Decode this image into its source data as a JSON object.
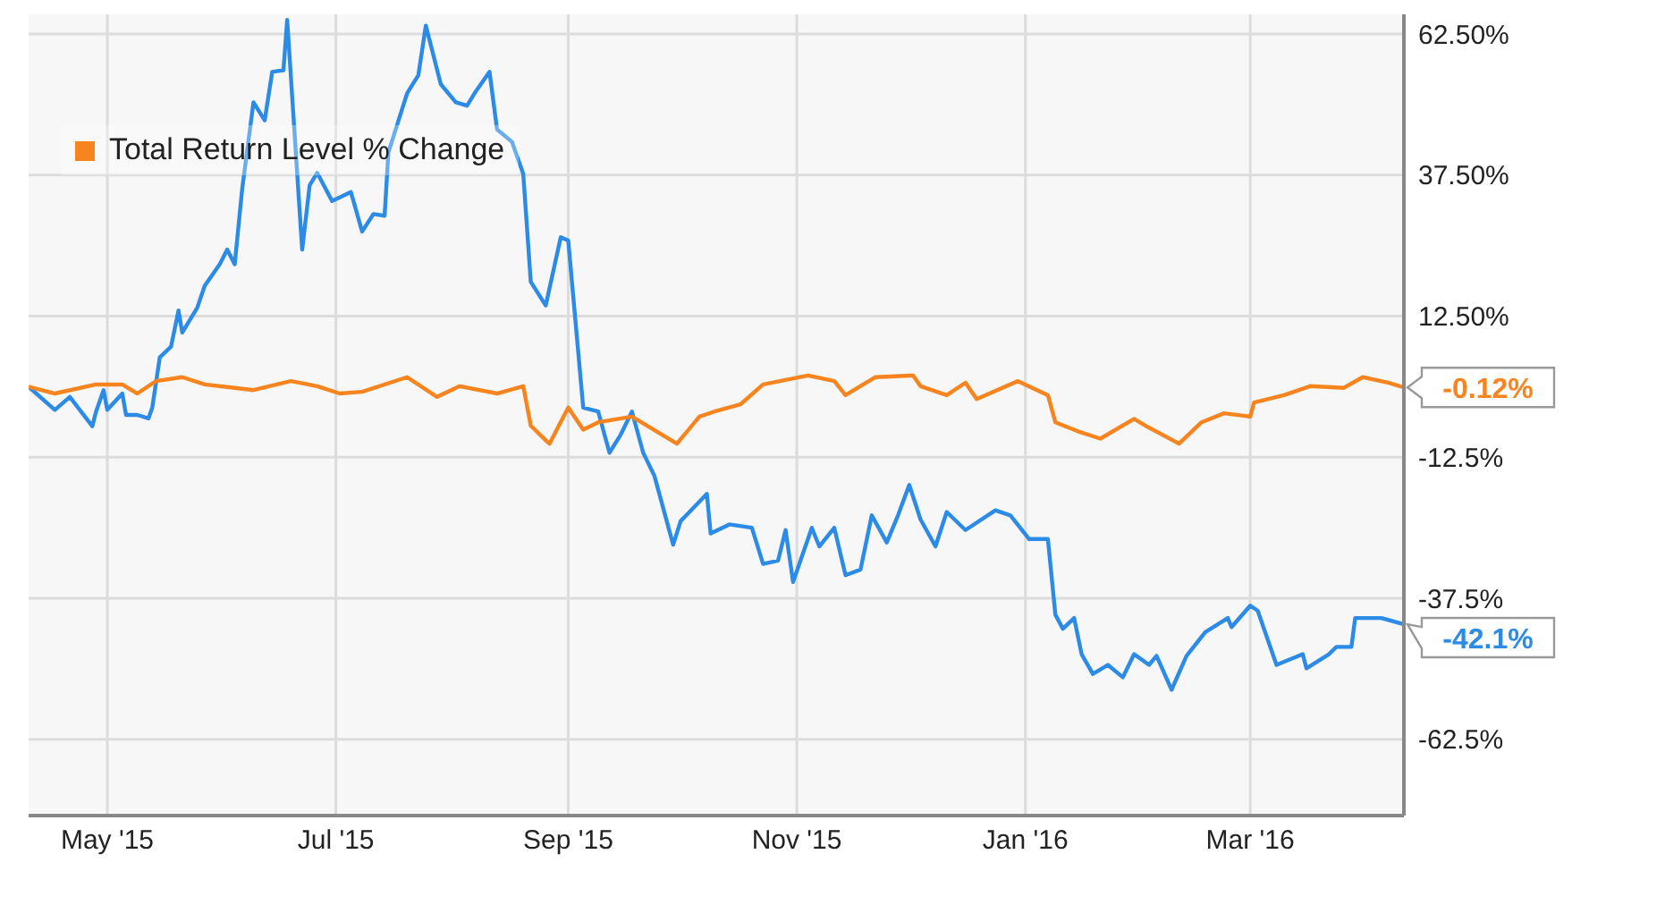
{
  "chart_data": {
    "type": "line",
    "legend": "top left",
    "grid": true,
    "xlim": [
      "2015-04-10",
      "2016-04-11"
    ],
    "xticks": [
      {
        "value": "2015-05-01",
        "label": "May '15"
      },
      {
        "value": "2015-07-01",
        "label": "Jul '15"
      },
      {
        "value": "2015-09-01",
        "label": "Sep '15"
      },
      {
        "value": "2015-11-01",
        "label": "Nov '15"
      },
      {
        "value": "2016-01-01",
        "label": "Jan '16"
      },
      {
        "value": "2016-03-01",
        "label": "Mar '16"
      }
    ],
    "ylim": [
      -76,
      66
    ],
    "yticks": [
      {
        "value": -62.5,
        "label": "-62.5%"
      },
      {
        "value": -37.5,
        "label": "-37.5%"
      },
      {
        "value": -12.5,
        "label": "-12.5%"
      },
      {
        "value": 12.5,
        "label": "12.50%"
      },
      {
        "value": 37.5,
        "label": "37.50%"
      },
      {
        "value": 62.5,
        "label": "62.50%"
      }
    ],
    "series": [
      {
        "color": "#2b8be6",
        "x": [
          "2015-04-10",
          "2015-04-17",
          "2015-04-21",
          "2015-04-27",
          "2015-04-28",
          "2015-04-30",
          "2015-05-01",
          "2015-05-05",
          "2015-05-06",
          "2015-05-09",
          "2015-05-12",
          "2015-05-13",
          "2015-05-15",
          "2015-05-18",
          "2015-05-20",
          "2015-05-21",
          "2015-05-25",
          "2015-05-27",
          "2015-05-31",
          "2015-06-02",
          "2015-06-04",
          "2015-06-06",
          "2015-06-09",
          "2015-06-12",
          "2015-06-14",
          "2015-06-17",
          "2015-06-18",
          "2015-06-22",
          "2015-06-24",
          "2015-06-26",
          "2015-06-30",
          "2015-07-05",
          "2015-07-08",
          "2015-07-11",
          "2015-07-14",
          "2015-07-15",
          "2015-07-20",
          "2015-07-23",
          "2015-07-25",
          "2015-07-29",
          "2015-08-02",
          "2015-08-05",
          "2015-08-07",
          "2015-08-11",
          "2015-08-13",
          "2015-08-17",
          "2015-08-20",
          "2015-08-22",
          "2015-08-26",
          "2015-08-30",
          "2015-09-01",
          "2015-09-05",
          "2015-09-09",
          "2015-09-12",
          "2015-09-15",
          "2015-09-18",
          "2015-09-21",
          "2015-09-24",
          "2015-09-29",
          "2015-10-01",
          "2015-10-08",
          "2015-10-09",
          "2015-10-14",
          "2015-10-20",
          "2015-10-23",
          "2015-10-27",
          "2015-10-29",
          "2015-10-31",
          "2015-11-05",
          "2015-11-07",
          "2015-11-11",
          "2015-11-14",
          "2015-11-18",
          "2015-11-21",
          "2015-11-25",
          "2015-11-28",
          "2015-12-01",
          "2015-12-04",
          "2015-12-08",
          "2015-12-11",
          "2015-12-16",
          "2015-12-24",
          "2015-12-28",
          "2016-01-02",
          "2016-01-07",
          "2016-01-09",
          "2016-01-11",
          "2016-01-14",
          "2016-01-16",
          "2016-01-19",
          "2016-01-23",
          "2016-01-27",
          "2016-01-30",
          "2016-02-03",
          "2016-02-05",
          "2016-02-09",
          "2016-02-13",
          "2016-02-18",
          "2016-02-24",
          "2016-02-25",
          "2016-03-01",
          "2016-03-03",
          "2016-03-08",
          "2016-03-15",
          "2016-03-16",
          "2016-03-22",
          "2016-03-24",
          "2016-03-28",
          "2016-03-29",
          "2016-04-05",
          "2016-04-11"
        ],
        "values": [
          0,
          -4.1,
          -1.8,
          -7,
          -4.4,
          -0.6,
          -4.1,
          -1.2,
          -5,
          -5,
          -5.6,
          -3.7,
          5.2,
          7.1,
          13.5,
          9.6,
          14,
          17.9,
          21.7,
          24.3,
          21.7,
          35.1,
          50.4,
          47.2,
          55.8,
          56.1,
          65,
          24.3,
          35.7,
          37.9,
          32.9,
          34.5,
          27.5,
          30.6,
          30.3,
          41.5,
          52,
          55.2,
          64,
          53.6,
          50.4,
          49.8,
          52,
          55.8,
          45.6,
          43.4,
          37.7,
          18.6,
          14.4,
          26.5,
          25.9,
          -3.7,
          -4.4,
          -11.7,
          -8.5,
          -4.4,
          -11.7,
          -15.8,
          -28,
          -23.8,
          -19,
          -26,
          -24.4,
          -25,
          -31.4,
          -30.8,
          -25.4,
          -34.6,
          -25,
          -28.3,
          -25,
          -33.4,
          -32.4,
          -22.8,
          -27.6,
          -22.8,
          -17.4,
          -23.5,
          -28.3,
          -22.2,
          -25.4,
          -21.9,
          -22.8,
          -27,
          -27,
          -40.4,
          -42.9,
          -41,
          -47.4,
          -50.9,
          -49.3,
          -51.5,
          -47.4,
          -49.3,
          -47.7,
          -53.7,
          -47.7,
          -43.5,
          -41,
          -42.6,
          -38.8,
          -39.7,
          -49.3,
          -47.4,
          -49.9,
          -47.4,
          -46.1,
          -46.1,
          -41,
          -41,
          -42.1
        ],
        "value_labels": [
          null,
          null,
          null,
          null,
          null,
          null,
          null,
          null,
          null,
          null,
          null,
          null,
          null,
          null,
          null,
          null,
          null,
          null,
          null,
          null,
          null,
          null,
          null,
          null,
          null,
          null,
          null,
          null,
          null,
          null,
          null,
          null,
          null,
          null,
          null,
          null,
          null,
          null,
          null,
          null,
          null,
          null,
          null,
          null,
          null,
          null,
          null,
          null,
          null,
          null,
          null,
          null,
          null,
          null,
          null,
          null,
          null,
          null,
          null,
          null,
          null,
          null,
          null,
          null,
          null,
          null,
          null,
          null,
          null,
          null,
          null,
          null,
          null,
          null,
          null,
          null,
          null,
          null,
          null,
          null,
          null,
          null,
          null,
          null,
          null,
          null,
          null,
          null,
          null,
          null,
          null,
          null,
          null,
          null,
          null,
          null,
          null,
          null,
          null,
          null,
          null,
          null,
          null,
          null,
          null,
          null,
          null,
          null,
          null,
          null,
          "-42.1%"
        ]
      },
      {
        "name": "Total Return Level % Change",
        "color": "#f7841e",
        "x": [
          "2015-04-10",
          "2015-04-17",
          "2015-04-28",
          "2015-05-05",
          "2015-05-09",
          "2015-05-14",
          "2015-05-21",
          "2015-05-27",
          "2015-06-09",
          "2015-06-19",
          "2015-06-26",
          "2015-07-02",
          "2015-07-08",
          "2015-07-20",
          "2015-07-28",
          "2015-08-03",
          "2015-08-13",
          "2015-08-20",
          "2015-08-22",
          "2015-08-26",
          "2015-08-27",
          "2015-09-01",
          "2015-09-05",
          "2015-09-09",
          "2015-09-18",
          "2015-09-30",
          "2015-10-06",
          "2015-10-10",
          "2015-10-17",
          "2015-10-23",
          "2015-11-04",
          "2015-11-11",
          "2015-11-14",
          "2015-11-22",
          "2015-12-02",
          "2015-12-04",
          "2015-12-11",
          "2015-12-16",
          "2015-12-19",
          "2015-12-30",
          "2016-01-07",
          "2016-01-09",
          "2016-01-15",
          "2016-01-21",
          "2016-01-30",
          "2016-02-02",
          "2016-02-11",
          "2016-02-17",
          "2016-02-23",
          "2016-03-01",
          "2016-03-02",
          "2016-03-10",
          "2016-03-17",
          "2016-03-26",
          "2016-03-31",
          "2016-04-07",
          "2016-04-11"
        ],
        "values": [
          0,
          -1.2,
          0.4,
          0.4,
          -1.2,
          1,
          1.7,
          0.4,
          -0.6,
          1,
          0.1,
          -1.2,
          -0.9,
          1.7,
          -1.8,
          0.1,
          -1.2,
          0.1,
          -6.9,
          -9.5,
          -10.1,
          -3.7,
          -7.6,
          -6.3,
          -5.3,
          -10.1,
          -5.3,
          -4.4,
          -3.1,
          0.4,
          2,
          1,
          -1.5,
          1.7,
          2,
          0.1,
          -1.5,
          0.7,
          -2.2,
          1,
          -1.5,
          -6.3,
          -7.9,
          -9.2,
          -5.7,
          -6.9,
          -10.1,
          -6.3,
          -4.7,
          -5.3,
          -2.8,
          -1.5,
          0.1,
          -0.2,
          1.7,
          0.7,
          -0.12
        ],
        "value_labels": [
          null,
          null,
          null,
          null,
          null,
          null,
          null,
          null,
          null,
          null,
          null,
          null,
          null,
          null,
          null,
          null,
          null,
          null,
          null,
          null,
          null,
          null,
          null,
          null,
          null,
          null,
          null,
          null,
          null,
          null,
          null,
          null,
          null,
          null,
          null,
          null,
          null,
          null,
          null,
          null,
          null,
          null,
          null,
          null,
          null,
          null,
          null,
          null,
          null,
          null,
          null,
          null,
          null,
          null,
          null,
          null,
          "-0.12%"
        ]
      }
    ]
  }
}
